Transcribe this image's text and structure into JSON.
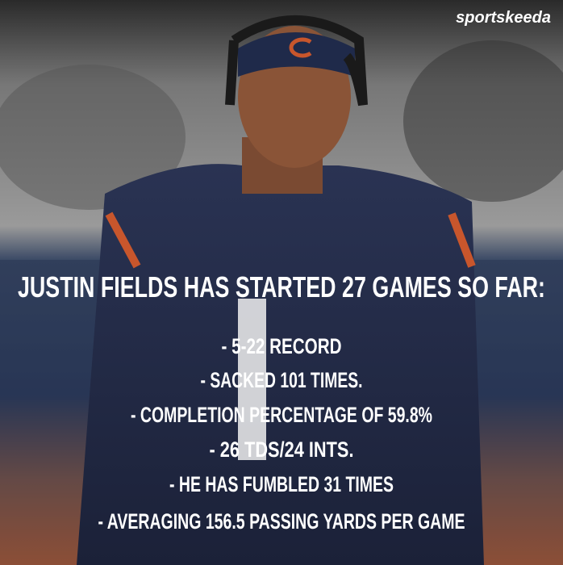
{
  "brand": "sportskeeda",
  "headline": "JUSTIN FIELDS HAS STARTED 27 GAMES SO FAR:",
  "stats": [
    "- 5-22 RECORD",
    "- SACKED 101 TIMES.",
    "- COMPLETION PERCENTAGE OF 59.8%",
    "- 26 TDS/24 INTS.",
    "- HE HAS FUMBLED 31 TIMES",
    "- AVERAGING 156.5 PASSING YARDS PER GAME"
  ]
}
